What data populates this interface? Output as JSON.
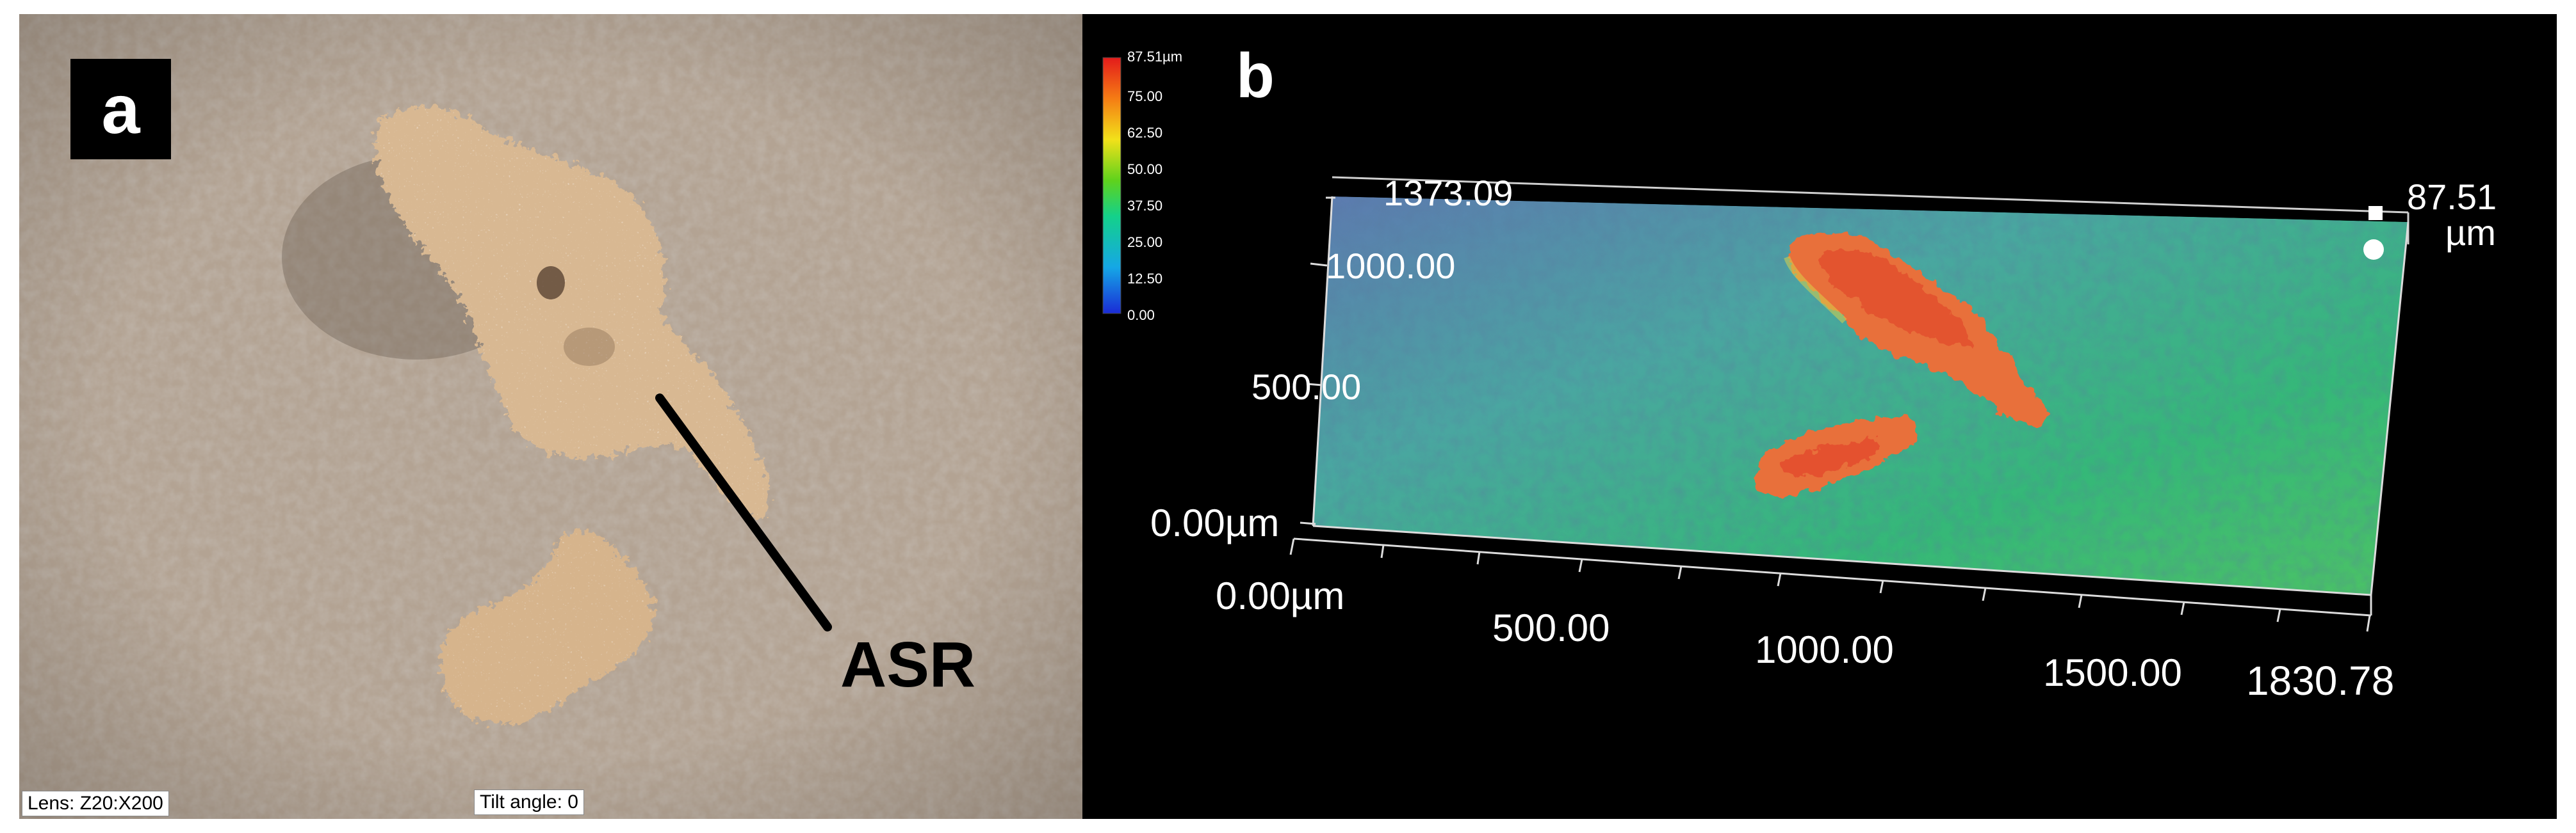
{
  "panel_a": {
    "letter": "a",
    "callout_label": "ASR",
    "lens_text": "Lens: Z20:X200",
    "tilt_text": "Tilt angle: 0"
  },
  "panel_b": {
    "letter": "b",
    "colorbar": {
      "max_label": "87.51µm",
      "ticks": [
        "75.00",
        "62.50",
        "50.00",
        "37.50",
        "25.00",
        "12.50",
        "0.00"
      ]
    },
    "y_axis": {
      "max": "1373.09",
      "ticks": [
        "1000.00",
        "500.00"
      ],
      "origin": "0.00µm"
    },
    "x_axis": {
      "origin": "0.00µm",
      "ticks": [
        "500.00",
        "1000.00",
        "1500.00"
      ],
      "max": "1830.78"
    },
    "z_axis": {
      "max": "87.51",
      "unit": "µm"
    }
  }
}
